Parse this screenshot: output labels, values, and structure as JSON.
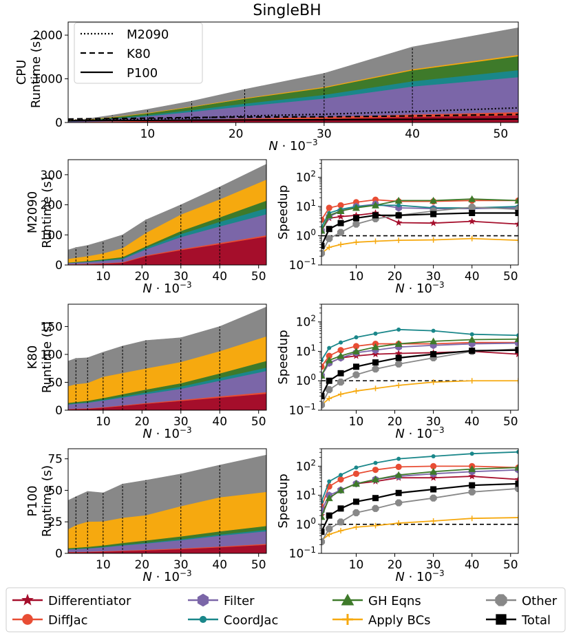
{
  "figure_title": "SingleBH",
  "chart_data": [
    {
      "id": "cpu",
      "type": "area",
      "title": "SingleBH",
      "ylabel": [
        "CPU",
        "Runtime (s)"
      ],
      "xlabel": "N·10⁻³",
      "xlim": [
        1,
        52
      ],
      "ylim": [
        0,
        2300
      ],
      "xticks": [
        10,
        20,
        30,
        40,
        50
      ],
      "yticks": [
        0,
        1000,
        2000
      ],
      "x": [
        1,
        3,
        6,
        10,
        15,
        21,
        30,
        40,
        52
      ],
      "stack": [
        {
          "name": "Differentiator",
          "values": [
            6,
            10,
            18,
            30,
            45,
            65,
            90,
            130,
            170
          ]
        },
        {
          "name": "DiffJac",
          "values": [
            4,
            6,
            10,
            15,
            22,
            30,
            40,
            55,
            70
          ]
        },
        {
          "name": "Filter",
          "values": [
            15,
            25,
            55,
            100,
            180,
            280,
            420,
            640,
            800
          ]
        },
        {
          "name": "CoordJac",
          "values": [
            5,
            8,
            15,
            25,
            40,
            60,
            85,
            120,
            160
          ]
        },
        {
          "name": "GH Eqns",
          "values": [
            10,
            15,
            25,
            45,
            70,
            110,
            160,
            250,
            320
          ]
        },
        {
          "name": "Apply BCs",
          "values": [
            2,
            4,
            6,
            8,
            12,
            15,
            20,
            25,
            30
          ]
        },
        {
          "name": "Other",
          "values": [
            5,
            12,
            40,
            80,
            120,
            200,
            310,
            510,
            620
          ]
        }
      ],
      "reference_lines": [
        {
          "name": "M2090",
          "style": "dotted",
          "values": [
            50,
            55,
            65,
            80,
            100,
            150,
            190,
            250,
            335
          ]
        },
        {
          "name": "K80",
          "style": "dashed",
          "values": [
            80,
            85,
            90,
            100,
            115,
            125,
            130,
            150,
            185
          ]
        },
        {
          "name": "P100",
          "style": "solid",
          "values": [
            42,
            45,
            49,
            48,
            55,
            58,
            63,
            70,
            78
          ]
        }
      ],
      "legend": [
        "M2090",
        "K80",
        "P100"
      ],
      "legend_position": "upper-left"
    },
    {
      "id": "m2090_rt",
      "type": "area",
      "ylabel": [
        "M2090",
        "Runtime (s)"
      ],
      "xlabel": "N·10⁻³",
      "xlim": [
        1,
        52
      ],
      "ylim": [
        0,
        350
      ],
      "xticks": [
        10,
        20,
        30,
        40,
        50
      ],
      "yticks": [
        0,
        100,
        200,
        300
      ],
      "x": [
        1,
        3,
        6,
        10,
        15,
        21,
        30,
        40,
        52
      ],
      "stack": [
        {
          "name": "Differentiator",
          "values": [
            2,
            2.5,
            3,
            5,
            8,
            30,
            50,
            70,
            95
          ]
        },
        {
          "name": "DiffJac",
          "values": [
            0.5,
            0.5,
            1,
            1,
            1.5,
            2,
            3,
            3.5,
            4
          ]
        },
        {
          "name": "Filter",
          "values": [
            4,
            5,
            6,
            8,
            10,
            20,
            40,
            55,
            70
          ]
        },
        {
          "name": "CoordJac",
          "values": [
            1,
            1,
            1.5,
            2,
            3,
            5,
            10,
            15,
            20
          ]
        },
        {
          "name": "GH Eqns",
          "values": [
            1,
            1.5,
            2,
            3,
            4,
            5,
            10,
            15,
            25
          ]
        },
        {
          "name": "Apply BCs",
          "values": [
            12,
            14,
            16,
            20,
            30,
            45,
            55,
            60,
            70
          ]
        },
        {
          "name": "Other",
          "values": [
            29.5,
            33.5,
            35.5,
            41,
            43.5,
            43,
            32,
            41,
            51
          ]
        }
      ]
    },
    {
      "id": "m2090_sp",
      "type": "line",
      "ylabel": "Speedup",
      "xlabel": "N·10⁻³",
      "yscale": "log",
      "xlim": [
        1,
        52
      ],
      "ylim": [
        0.1,
        400
      ],
      "xticks": [
        10,
        20,
        30,
        40,
        50
      ],
      "yticks": [
        "10^-1",
        "10^0",
        "10^1",
        "10^2"
      ],
      "x": [
        1,
        3,
        6,
        10,
        15,
        21,
        30,
        40,
        52
      ],
      "series": [
        {
          "name": "Differentiator",
          "values": [
            1.5,
            4,
            4.5,
            5,
            6,
            2.8,
            2.7,
            3.1,
            2.5
          ]
        },
        {
          "name": "DiffJac",
          "values": [
            3.5,
            9,
            11,
            14,
            17,
            15,
            15,
            16,
            16
          ]
        },
        {
          "name": "Filter",
          "values": [
            1.5,
            4.5,
            7,
            10,
            12,
            9,
            8.5,
            8.5,
            9
          ]
        },
        {
          "name": "CoordJac",
          "values": [
            2,
            6,
            8,
            10,
            11,
            11,
            9,
            9,
            10
          ]
        },
        {
          "name": "GH Eqns",
          "values": [
            1.5,
            5,
            7,
            9,
            11,
            16,
            16,
            18,
            16
          ]
        },
        {
          "name": "Apply BCs",
          "values": [
            0.25,
            0.4,
            0.5,
            0.6,
            0.65,
            0.7,
            0.72,
            0.8,
            0.7
          ]
        },
        {
          "name": "Other",
          "values": [
            0.25,
            0.8,
            1.3,
            2.5,
            3.8,
            5,
            7,
            9.5,
            8
          ]
        },
        {
          "name": "Total",
          "values": [
            0.45,
            1.7,
            2.7,
            4,
            5,
            5,
            5.5,
            6,
            6
          ]
        }
      ],
      "reference_line": 1
    },
    {
      "id": "k80_rt",
      "type": "area",
      "ylabel": [
        "K80",
        "Runtime (s)"
      ],
      "xlabel": "N·10⁻³",
      "xlim": [
        1,
        52
      ],
      "ylim": [
        0,
        190
      ],
      "xticks": [
        10,
        20,
        30,
        40,
        50
      ],
      "yticks": [
        0,
        50,
        100,
        150
      ],
      "x": [
        1,
        3,
        6,
        10,
        15,
        21,
        30,
        40,
        52
      ],
      "stack": [
        {
          "name": "Differentiator",
          "values": [
            2,
            2.5,
            3,
            5,
            8,
            12,
            17,
            23,
            30
          ]
        },
        {
          "name": "DiffJac",
          "values": [
            0.3,
            0.3,
            0.5,
            0.5,
            0.8,
            1,
            1.5,
            2,
            2.5
          ]
        },
        {
          "name": "Filter",
          "values": [
            8,
            9,
            10,
            12,
            14,
            16,
            20,
            28,
            38
          ]
        },
        {
          "name": "CoordJac",
          "values": [
            1,
            1,
            1,
            1.5,
            2,
            3,
            4,
            5,
            6
          ]
        },
        {
          "name": "GH Eqns",
          "values": [
            2,
            2,
            2.5,
            3,
            4,
            5,
            6,
            8,
            12
          ]
        },
        {
          "name": "Apply BCs",
          "values": [
            30,
            32,
            32,
            38,
            38,
            38,
            38,
            40,
            44
          ]
        },
        {
          "name": "Other",
          "values": [
            44.7,
            46.2,
            45,
            44,
            48.2,
            50,
            43.5,
            44,
            52.5
          ]
        }
      ]
    },
    {
      "id": "k80_sp",
      "type": "line",
      "ylabel": "Speedup",
      "xlabel": "N·10⁻³",
      "yscale": "log",
      "xlim": [
        1,
        52
      ],
      "ylim": [
        0.1,
        400
      ],
      "xticks": [
        10,
        20,
        30,
        40,
        50
      ],
      "yticks": [
        "10^-1",
        "10^0",
        "10^1",
        "10^2"
      ],
      "x": [
        1,
        3,
        6,
        10,
        15,
        21,
        30,
        40,
        52
      ],
      "series": [
        {
          "name": "Differentiator",
          "values": [
            1.5,
            4,
            6,
            7,
            8,
            8.5,
            9,
            10,
            8
          ]
        },
        {
          "name": "DiffJac",
          "values": [
            3,
            7,
            11,
            15,
            18,
            18,
            18,
            20,
            20
          ]
        },
        {
          "name": "Filter",
          "values": [
            1.5,
            4,
            6,
            9,
            11,
            14,
            16,
            18,
            19
          ]
        },
        {
          "name": "CoordJac",
          "values": [
            5,
            13,
            20,
            30,
            40,
            55,
            50,
            38,
            35
          ]
        },
        {
          "name": "GH Eqns",
          "values": [
            1.5,
            5,
            7,
            10,
            14,
            18,
            22,
            25,
            26
          ]
        },
        {
          "name": "Apply BCs",
          "values": [
            0.15,
            0.25,
            0.35,
            0.45,
            0.55,
            0.7,
            0.9,
            1,
            1
          ]
        },
        {
          "name": "Other",
          "values": [
            0.15,
            0.5,
            0.9,
            1.6,
            2.5,
            3.7,
            6,
            10,
            12
          ]
        },
        {
          "name": "Total",
          "values": [
            0.3,
            1,
            1.8,
            3,
            4.2,
            6,
            8,
            10.5,
            11
          ]
        }
      ],
      "reference_line": 1
    },
    {
      "id": "p100_rt",
      "type": "area",
      "ylabel": [
        "P100",
        "Runtime (s)"
      ],
      "xlabel": "N·10⁻³",
      "xlim": [
        1,
        52
      ],
      "ylim": [
        0,
        83
      ],
      "xticks": [
        10,
        20,
        30,
        40,
        50
      ],
      "yticks": [
        0,
        25,
        50,
        75
      ],
      "x": [
        1,
        3,
        6,
        10,
        15,
        21,
        30,
        40,
        52
      ],
      "stack": [
        {
          "name": "Differentiator",
          "values": [
            1,
            1,
            1.2,
            1.5,
            2,
            2.5,
            3.5,
            5,
            7
          ]
        },
        {
          "name": "DiffJac",
          "values": [
            0.2,
            0.2,
            0.2,
            0.3,
            0.3,
            0.4,
            0.5,
            0.5,
            0.6
          ]
        },
        {
          "name": "Filter",
          "values": [
            2,
            2.2,
            2.5,
            3,
            4,
            5,
            6.5,
            8.5,
            10
          ]
        },
        {
          "name": "CoordJac",
          "values": [
            0.3,
            0.3,
            0.3,
            0.4,
            0.5,
            0.6,
            0.8,
            1,
            1.2
          ]
        },
        {
          "name": "GH Eqns",
          "values": [
            0.7,
            0.8,
            1,
            1.2,
            1.5,
            1.8,
            2.2,
            2.5,
            3
          ]
        },
        {
          "name": "Apply BCs",
          "values": [
            15,
            18,
            20,
            19,
            20,
            20,
            24,
            27,
            27
          ]
        },
        {
          "name": "Other",
          "values": [
            22.8,
            22.5,
            24,
            22.6,
            26.7,
            27.7,
            25.5,
            25.5,
            29.2
          ]
        }
      ]
    },
    {
      "id": "p100_sp",
      "type": "line",
      "ylabel": "Speedup",
      "xlabel": "N·10⁻³",
      "yscale": "log",
      "xlim": [
        1,
        52
      ],
      "ylim": [
        0.1,
        400
      ],
      "xticks": [
        10,
        20,
        30,
        40,
        50
      ],
      "yticks": [
        "10^-1",
        "10^0",
        "10^1",
        "10^2"
      ],
      "x": [
        1,
        3,
        6,
        10,
        15,
        21,
        30,
        40,
        52
      ],
      "series": [
        {
          "name": "Differentiator",
          "values": [
            2,
            8,
            15,
            25,
            30,
            40,
            40,
            45,
            35
          ]
        },
        {
          "name": "DiffJac",
          "values": [
            4,
            20,
            35,
            55,
            75,
            95,
            100,
            100,
            90
          ]
        },
        {
          "name": "Filter",
          "values": [
            3,
            10,
            15,
            25,
            35,
            45,
            55,
            65,
            75
          ]
        },
        {
          "name": "CoordJac",
          "values": [
            6,
            30,
            50,
            90,
            130,
            180,
            220,
            270,
            310
          ]
        },
        {
          "name": "GH Eqns",
          "values": [
            1.8,
            8,
            15,
            25,
            35,
            50,
            65,
            80,
            90
          ]
        },
        {
          "name": "Apply BCs",
          "values": [
            0.28,
            0.45,
            0.6,
            0.8,
            0.9,
            1.1,
            1.3,
            1.6,
            1.7
          ]
        },
        {
          "name": "Other",
          "values": [
            0.25,
            0.7,
            1.2,
            2.5,
            3.5,
            5.5,
            8,
            13,
            17
          ]
        },
        {
          "name": "Total",
          "values": [
            0.55,
            2,
            3.5,
            6,
            8,
            12,
            16,
            22,
            25
          ]
        }
      ],
      "reference_line": 1
    }
  ],
  "legend": {
    "entries": [
      {
        "name": "Differentiator",
        "label": "Differentiator",
        "color": "#a50e2b",
        "marker": "star"
      },
      {
        "name": "Filter",
        "label": "Filter",
        "color": "#7b66a8",
        "marker": "hexagon"
      },
      {
        "name": "GH Eqns",
        "label": "GH Eqns",
        "color": "#3e7a2a",
        "marker": "triangle"
      },
      {
        "name": "Other",
        "label": "Other",
        "color": "#888888",
        "marker": "octagon"
      },
      {
        "name": "DiffJac",
        "label": "DiffJac",
        "color": "#e84d34",
        "marker": "circle"
      },
      {
        "name": "CoordJac",
        "label": "CoordJac",
        "color": "#1a878a",
        "marker": "dot"
      },
      {
        "name": "Apply BCs",
        "label": "Apply BCs",
        "color": "#f6a90f",
        "marker": "plus"
      },
      {
        "name": "Total",
        "label": "Total",
        "color": "#000000",
        "marker": "square"
      }
    ]
  },
  "colors": {
    "Differentiator": "#a50e2b",
    "DiffJac": "#e84d34",
    "Filter": "#7b66a8",
    "CoordJac": "#1a878a",
    "GH Eqns": "#3e7a2a",
    "Apply BCs": "#f6a90f",
    "Other": "#888888",
    "Total": "#000000"
  }
}
